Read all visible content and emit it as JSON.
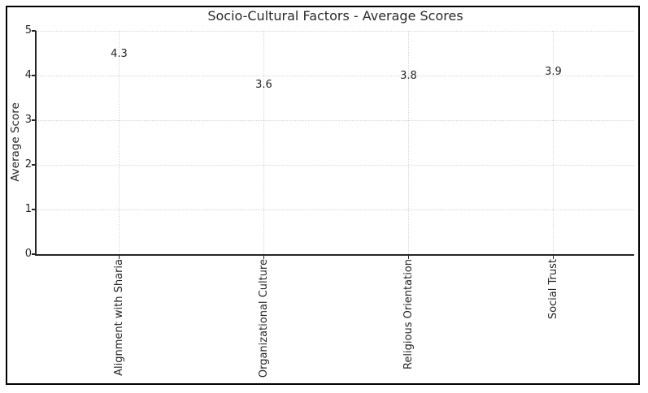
{
  "figure": {
    "kind": "static rendered chart (matplotlib-style)",
    "background_color": "#ffffff",
    "border_color": "#000000"
  },
  "chart_data": {
    "type": "bar",
    "title": "Socio-Cultural Factors - Average Scores",
    "categories": [
      "Alignment with Sharia",
      "Organizational Culture",
      "Religious Orientation",
      "Social Trust"
    ],
    "values": [
      4.3,
      3.6,
      3.8,
      3.9
    ],
    "bar_value_labels": [
      "4.3",
      "3.6",
      "3.8",
      "3.9"
    ],
    "xlabel": "",
    "ylabel": "Average Score",
    "ylim": [
      0,
      5
    ],
    "yticks": [
      "0",
      "1",
      "2",
      "3",
      "4",
      "5"
    ],
    "x_tick_rotation_deg": 90,
    "grid": {
      "style": "dotted",
      "axes": "both",
      "color": "#d9d9d9"
    },
    "legend": "none",
    "bar_color": "#87CEEB",
    "text_color": "#262626"
  }
}
